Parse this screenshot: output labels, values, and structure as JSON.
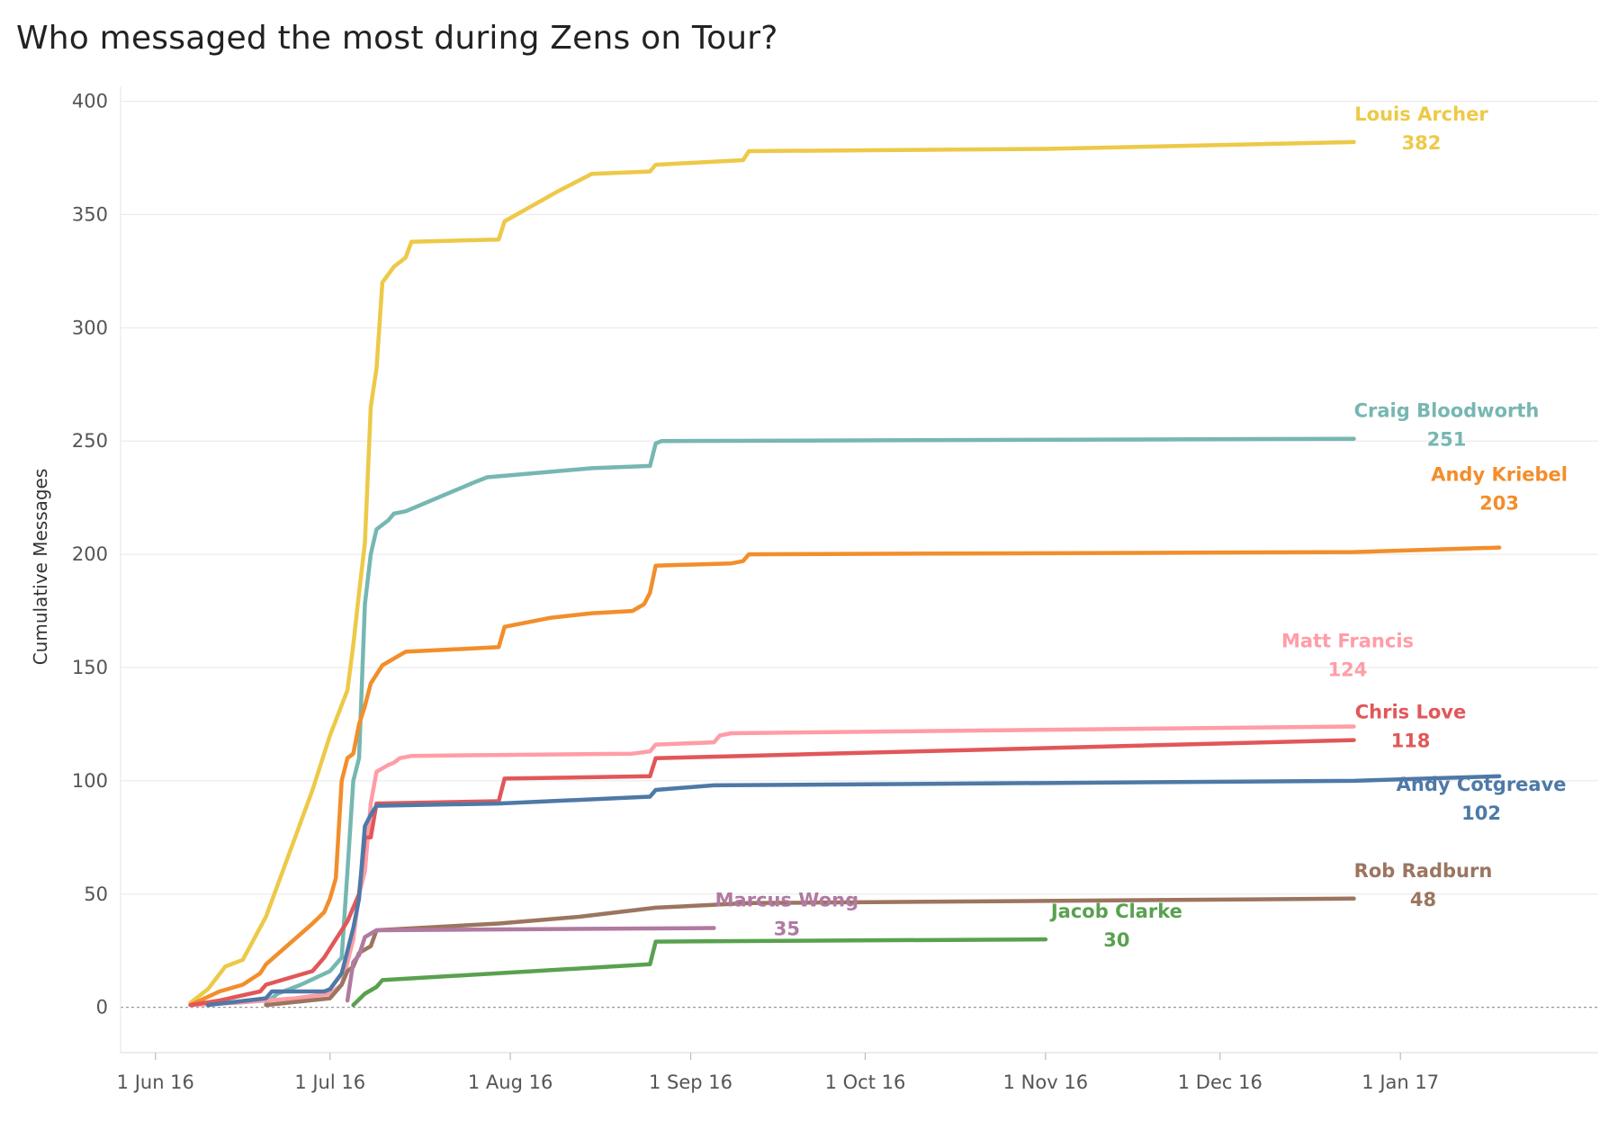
{
  "chart_data": {
    "type": "line",
    "title": "Who messaged the most during Zens on Tour?",
    "xlabel": "",
    "ylabel": "Cumulative Messages",
    "xlim": [
      "2016-05-26",
      "2017-02-04"
    ],
    "ylim": [
      -20,
      405
    ],
    "grid": true,
    "legend": "end-of-line labels",
    "x_ticks": [
      {
        "date": "2016-06-01",
        "label": "1 Jun 16"
      },
      {
        "date": "2016-07-01",
        "label": "1 Jul 16"
      },
      {
        "date": "2016-08-01",
        "label": "1 Aug 16"
      },
      {
        "date": "2016-09-01",
        "label": "1 Sep 16"
      },
      {
        "date": "2016-10-01",
        "label": "1 Oct 16"
      },
      {
        "date": "2016-11-01",
        "label": "1 Nov 16"
      },
      {
        "date": "2016-12-01",
        "label": "1 Dec 16"
      },
      {
        "date": "2017-01-01",
        "label": "1 Jan 17"
      }
    ],
    "y_ticks": [
      0,
      50,
      100,
      150,
      200,
      250,
      300,
      350,
      400
    ],
    "series": [
      {
        "name": "Louis Archer",
        "total": "382",
        "color": "#EDC948",
        "points": [
          [
            "2016-06-07",
            2
          ],
          [
            "2016-06-10",
            8
          ],
          [
            "2016-06-13",
            18
          ],
          [
            "2016-06-16",
            21
          ],
          [
            "2016-06-20",
            40
          ],
          [
            "2016-06-24",
            68
          ],
          [
            "2016-06-28",
            96
          ],
          [
            "2016-07-01",
            120
          ],
          [
            "2016-07-04",
            140
          ],
          [
            "2016-07-05",
            160
          ],
          [
            "2016-07-06",
            183
          ],
          [
            "2016-07-07",
            205
          ],
          [
            "2016-07-08",
            265
          ],
          [
            "2016-07-09",
            282
          ],
          [
            "2016-07-10",
            320
          ],
          [
            "2016-07-12",
            327
          ],
          [
            "2016-07-14",
            331
          ],
          [
            "2016-07-15",
            338
          ],
          [
            "2016-07-30",
            339
          ],
          [
            "2016-07-31",
            347
          ],
          [
            "2016-08-09",
            360
          ],
          [
            "2016-08-15",
            368
          ],
          [
            "2016-08-25",
            369
          ],
          [
            "2016-08-26",
            372
          ],
          [
            "2016-09-10",
            374
          ],
          [
            "2016-09-11",
            378
          ],
          [
            "2016-11-01",
            379
          ],
          [
            "2016-12-24",
            382
          ]
        ]
      },
      {
        "name": "Craig Bloodworth",
        "total": "251",
        "color": "#76B7B2",
        "points": [
          [
            "2016-06-20",
            2
          ],
          [
            "2016-06-22",
            6
          ],
          [
            "2016-06-26",
            10
          ],
          [
            "2016-07-01",
            16
          ],
          [
            "2016-07-03",
            22
          ],
          [
            "2016-07-04",
            60
          ],
          [
            "2016-07-05",
            100
          ],
          [
            "2016-07-06",
            110
          ],
          [
            "2016-07-07",
            178
          ],
          [
            "2016-07-08",
            200
          ],
          [
            "2016-07-09",
            211
          ],
          [
            "2016-07-11",
            215
          ],
          [
            "2016-07-12",
            218
          ],
          [
            "2016-07-14",
            219
          ],
          [
            "2016-07-26",
            232
          ],
          [
            "2016-07-28",
            234
          ],
          [
            "2016-08-15",
            238
          ],
          [
            "2016-08-25",
            239
          ],
          [
            "2016-08-26",
            249
          ],
          [
            "2016-08-27",
            250
          ],
          [
            "2016-12-24",
            251
          ]
        ]
      },
      {
        "name": "Andy Kriebel",
        "total": "203",
        "color": "#F28E2B",
        "points": [
          [
            "2016-06-07",
            1
          ],
          [
            "2016-06-12",
            7
          ],
          [
            "2016-06-16",
            10
          ],
          [
            "2016-06-19",
            15
          ],
          [
            "2016-06-20",
            19
          ],
          [
            "2016-06-28",
            37
          ],
          [
            "2016-06-30",
            42
          ],
          [
            "2016-07-01",
            48
          ],
          [
            "2016-07-02",
            57
          ],
          [
            "2016-07-03",
            100
          ],
          [
            "2016-07-04",
            110
          ],
          [
            "2016-07-05",
            112
          ],
          [
            "2016-07-06",
            125
          ],
          [
            "2016-07-07",
            133
          ],
          [
            "2016-07-08",
            143
          ],
          [
            "2016-07-10",
            151
          ],
          [
            "2016-07-12",
            154
          ],
          [
            "2016-07-14",
            157
          ],
          [
            "2016-07-30",
            159
          ],
          [
            "2016-07-31",
            168
          ],
          [
            "2016-08-08",
            172
          ],
          [
            "2016-08-15",
            174
          ],
          [
            "2016-08-22",
            175
          ],
          [
            "2016-08-24",
            178
          ],
          [
            "2016-08-25",
            183
          ],
          [
            "2016-08-26",
            195
          ],
          [
            "2016-09-08",
            196
          ],
          [
            "2016-09-10",
            197
          ],
          [
            "2016-09-11",
            200
          ],
          [
            "2016-12-24",
            201
          ],
          [
            "2017-01-18",
            203
          ]
        ]
      },
      {
        "name": "Matt Francis",
        "total": "124",
        "color": "#FF9DA7",
        "points": [
          [
            "2016-06-07",
            1
          ],
          [
            "2016-06-15",
            2
          ],
          [
            "2016-06-25",
            4
          ],
          [
            "2016-07-01",
            6
          ],
          [
            "2016-07-03",
            10
          ],
          [
            "2016-07-05",
            30
          ],
          [
            "2016-07-06",
            50
          ],
          [
            "2016-07-07",
            60
          ],
          [
            "2016-07-08",
            90
          ],
          [
            "2016-07-09",
            104
          ],
          [
            "2016-07-11",
            107
          ],
          [
            "2016-07-12",
            108
          ],
          [
            "2016-07-13",
            110
          ],
          [
            "2016-07-15",
            111
          ],
          [
            "2016-08-22",
            112
          ],
          [
            "2016-08-25",
            113
          ],
          [
            "2016-08-26",
            116
          ],
          [
            "2016-09-05",
            117
          ],
          [
            "2016-09-06",
            120
          ],
          [
            "2016-09-08",
            121
          ],
          [
            "2016-12-24",
            124
          ]
        ]
      },
      {
        "name": "Chris Love",
        "total": "118",
        "color": "#E15759",
        "points": [
          [
            "2016-06-07",
            1
          ],
          [
            "2016-06-12",
            3
          ],
          [
            "2016-06-19",
            7
          ],
          [
            "2016-06-20",
            10
          ],
          [
            "2016-06-28",
            16
          ],
          [
            "2016-06-30",
            22
          ],
          [
            "2016-07-02",
            30
          ],
          [
            "2016-07-04",
            38
          ],
          [
            "2016-07-06",
            50
          ],
          [
            "2016-07-07",
            75
          ],
          [
            "2016-07-08",
            75
          ],
          [
            "2016-07-09",
            90
          ],
          [
            "2016-07-30",
            91
          ],
          [
            "2016-07-31",
            101
          ],
          [
            "2016-08-25",
            102
          ],
          [
            "2016-08-26",
            110
          ],
          [
            "2016-09-10",
            111
          ],
          [
            "2016-12-24",
            118
          ]
        ]
      },
      {
        "name": "Andy Cotgreave",
        "total": "102",
        "color": "#4E79A7",
        "points": [
          [
            "2016-06-10",
            1
          ],
          [
            "2016-06-20",
            4
          ],
          [
            "2016-06-21",
            7
          ],
          [
            "2016-06-30",
            7
          ],
          [
            "2016-07-01",
            8
          ],
          [
            "2016-07-03",
            15
          ],
          [
            "2016-07-05",
            35
          ],
          [
            "2016-07-06",
            48
          ],
          [
            "2016-07-07",
            80
          ],
          [
            "2016-07-08",
            85
          ],
          [
            "2016-07-09",
            89
          ],
          [
            "2016-07-30",
            90
          ],
          [
            "2016-08-25",
            93
          ],
          [
            "2016-08-26",
            96
          ],
          [
            "2016-09-05",
            98
          ],
          [
            "2016-12-24",
            100
          ],
          [
            "2017-01-18",
            102
          ]
        ]
      },
      {
        "name": "Rob Radburn",
        "total": "48",
        "color": "#9C755F",
        "points": [
          [
            "2016-06-20",
            1
          ],
          [
            "2016-07-01",
            4
          ],
          [
            "2016-07-03",
            10
          ],
          [
            "2016-07-04",
            16
          ],
          [
            "2016-07-05",
            18
          ],
          [
            "2016-07-06",
            24
          ],
          [
            "2016-07-08",
            27
          ],
          [
            "2016-07-09",
            34
          ],
          [
            "2016-07-30",
            37
          ],
          [
            "2016-08-13",
            40
          ],
          [
            "2016-08-26",
            44
          ],
          [
            "2016-09-11",
            46
          ],
          [
            "2016-12-24",
            48
          ]
        ]
      },
      {
        "name": "Marcus Wong",
        "total": "35",
        "color": "#B07AA1",
        "points": [
          [
            "2016-07-04",
            3
          ],
          [
            "2016-07-05",
            20
          ],
          [
            "2016-07-06",
            23
          ],
          [
            "2016-07-07",
            31
          ],
          [
            "2016-07-09",
            34
          ],
          [
            "2016-09-05",
            35
          ]
        ]
      },
      {
        "name": "Jacob Clarke",
        "total": "30",
        "color": "#59A14F",
        "points": [
          [
            "2016-07-05",
            1
          ],
          [
            "2016-07-07",
            6
          ],
          [
            "2016-07-09",
            9
          ],
          [
            "2016-07-10",
            12
          ],
          [
            "2016-08-25",
            19
          ],
          [
            "2016-08-26",
            29
          ],
          [
            "2016-11-01",
            30
          ]
        ]
      }
    ]
  }
}
